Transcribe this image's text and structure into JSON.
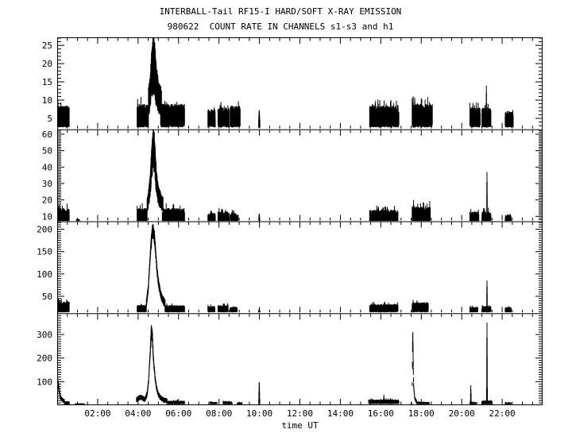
{
  "chart_data": {
    "type": "line",
    "title": "INTERBALL-Tail RF15-I HARD/SOFT X-RAY EMISSION",
    "subtitle": "980622  COUNT RATE IN CHANNELS s1-s3 and h1",
    "colors": {
      "foreground": "#000000",
      "background": "#ffffff"
    },
    "xaxis": {
      "title": "time UT",
      "range_hours": [
        0,
        24
      ],
      "major_tick_hours": 2,
      "minor_tick_hours": 0.5,
      "ticks": [
        {
          "h": 2,
          "label": "02:00"
        },
        {
          "h": 4,
          "label": "04:00"
        },
        {
          "h": 6,
          "label": "06:00"
        },
        {
          "h": 8,
          "label": "08:00"
        },
        {
          "h": 10,
          "label": "10:00"
        },
        {
          "h": 12,
          "label": "12:00"
        },
        {
          "h": 14,
          "label": "14:00"
        },
        {
          "h": 16,
          "label": "16:00"
        },
        {
          "h": 18,
          "label": "18:00"
        },
        {
          "h": 20,
          "label": "20:00"
        },
        {
          "h": 22,
          "label": "22:00"
        }
      ]
    },
    "panels": [
      {
        "channel": "s1",
        "ylim": [
          2,
          27.2
        ],
        "yticks": [
          5,
          10,
          15,
          20,
          25
        ],
        "yminor": 1,
        "segments": [
          {
            "type": "band",
            "t0": 0.03,
            "t1": 0.6,
            "lo": 2.5,
            "hi": 8.5
          },
          {
            "type": "flare",
            "t0": 3.95,
            "t1": 6.3,
            "lo": 2.5,
            "hi": 9,
            "th": 0.45,
            "minth": 3,
            "env": [
              [
                3.95,
                7.5
              ],
              [
                4.2,
                8
              ],
              [
                4.4,
                9.5
              ],
              [
                4.5,
                11
              ],
              [
                4.6,
                15
              ],
              [
                4.68,
                21
              ],
              [
                4.74,
                25.5
              ],
              [
                4.8,
                24
              ],
              [
                4.88,
                18
              ],
              [
                4.95,
                15
              ],
              [
                5.05,
                12.5
              ],
              [
                5.2,
                11
              ],
              [
                5.4,
                9.8
              ],
              [
                5.7,
                9.2
              ],
              [
                6.28,
                8.5
              ]
            ]
          },
          {
            "type": "band",
            "t0": 7.45,
            "t1": 7.82,
            "lo": 2.5,
            "hi": 7.5
          },
          {
            "type": "band",
            "t0": 7.95,
            "t1": 8.5,
            "lo": 2.5,
            "hi": 8,
            "spikes": [
              [
                8.1,
                9.5
              ]
            ]
          },
          {
            "type": "band",
            "t0": 8.55,
            "t1": 9.05,
            "lo": 2.5,
            "hi": 8.5
          },
          {
            "type": "spike",
            "t": 9.99,
            "v": 7.5,
            "w": 0.07,
            "lo": 2.5
          },
          {
            "type": "band",
            "t0": 15.45,
            "t1": 16.9,
            "lo": 2.5,
            "hi": 8.5,
            "spikes": [
              [
                15.95,
                10
              ],
              [
                16.5,
                10
              ]
            ]
          },
          {
            "type": "band",
            "t0": 17.55,
            "t1": 18.55,
            "lo": 2.5,
            "hi": 9,
            "spikes": [
              [
                17.6,
                11
              ],
              [
                18.0,
                10.5
              ]
            ]
          },
          {
            "type": "band",
            "t0": 20.4,
            "t1": 20.92,
            "lo": 2.5,
            "hi": 8
          },
          {
            "type": "band",
            "t0": 21.0,
            "t1": 21.45,
            "lo": 2.5,
            "hi": 8,
            "spikes": [
              [
                21.22,
                14
              ]
            ]
          },
          {
            "type": "band",
            "t0": 22.15,
            "t1": 22.55,
            "lo": 2.5,
            "hi": 7
          }
        ]
      },
      {
        "channel": "s2",
        "ylim": [
          7,
          63
        ],
        "yticks": [
          10,
          20,
          30,
          40,
          50,
          60
        ],
        "yminor": 1,
        "segments": [
          {
            "type": "band",
            "t0": 0.03,
            "t1": 0.6,
            "lo": 4.5,
            "hi": 15,
            "spikes": [
              [
                0.1,
                17
              ]
            ]
          },
          {
            "type": "band",
            "t0": 0.95,
            "t1": 1.1,
            "lo": 4.5,
            "hi": 8.5
          },
          {
            "type": "flare",
            "t0": 3.95,
            "t1": 6.3,
            "lo": 4.5,
            "hi": 15,
            "th": 0.3,
            "minth": 5,
            "env": [
              [
                3.95,
                13
              ],
              [
                4.2,
                14
              ],
              [
                4.4,
                17
              ],
              [
                4.5,
                22
              ],
              [
                4.6,
                33
              ],
              [
                4.68,
                50
              ],
              [
                4.74,
                60
              ],
              [
                4.8,
                56
              ],
              [
                4.88,
                40
              ],
              [
                4.95,
                30
              ],
              [
                5.05,
                24
              ],
              [
                5.2,
                20
              ],
              [
                5.4,
                17
              ],
              [
                5.7,
                15
              ],
              [
                6.28,
                14
              ]
            ]
          },
          {
            "type": "band",
            "t0": 7.45,
            "t1": 7.82,
            "lo": 4.5,
            "hi": 12
          },
          {
            "type": "band",
            "t0": 7.95,
            "t1": 8.5,
            "lo": 4.5,
            "hi": 13
          },
          {
            "type": "band",
            "t0": 8.55,
            "t1": 8.95,
            "lo": 4.5,
            "hi": 12
          },
          {
            "type": "spike",
            "t": 9.99,
            "v": 12,
            "w": 0.07,
            "lo": 4.5
          },
          {
            "type": "band",
            "t0": 15.45,
            "t1": 16.85,
            "lo": 5,
            "hi": 14,
            "spikes": [
              [
                16.2,
                16
              ]
            ]
          },
          {
            "type": "band",
            "t0": 17.55,
            "t1": 18.45,
            "lo": 5,
            "hi": 16,
            "spikes": [
              [
                17.62,
                20
              ]
            ]
          },
          {
            "type": "band",
            "t0": 20.4,
            "t1": 20.85,
            "lo": 4.5,
            "hi": 13
          },
          {
            "type": "band",
            "t0": 21.0,
            "t1": 21.45,
            "lo": 4.5,
            "hi": 13,
            "spikes": [
              [
                21.25,
                37
              ]
            ]
          },
          {
            "type": "band",
            "t0": 22.15,
            "t1": 22.45,
            "lo": 4.5,
            "hi": 11
          }
        ]
      },
      {
        "channel": "s3",
        "ylim": [
          12,
          218
        ],
        "yticks": [
          50,
          100,
          150,
          200
        ],
        "yminor": 5,
        "segments": [
          {
            "type": "band",
            "t0": 0.03,
            "t1": 0.6,
            "lo": 14,
            "hi": 38,
            "spikes": [
              [
                0.06,
                45
              ]
            ]
          },
          {
            "type": "flare",
            "t0": 3.95,
            "t1": 6.3,
            "lo": 14,
            "hi": 30,
            "th": 0.1,
            "minth": 12,
            "env": [
              [
                3.95,
                26
              ],
              [
                4.15,
                30
              ],
              [
                4.3,
                30
              ],
              [
                4.4,
                36
              ],
              [
                4.5,
                70
              ],
              [
                4.58,
                130
              ],
              [
                4.65,
                180
              ],
              [
                4.72,
                207
              ],
              [
                4.78,
                200
              ],
              [
                4.85,
                165
              ],
              [
                4.92,
                120
              ],
              [
                5.0,
                88
              ],
              [
                5.1,
                62
              ],
              [
                5.2,
                48
              ],
              [
                5.35,
                38
              ],
              [
                5.6,
                32
              ],
              [
                6.28,
                28
              ]
            ]
          },
          {
            "type": "band",
            "t0": 7.45,
            "t1": 7.8,
            "lo": 14,
            "hi": 28
          },
          {
            "type": "band",
            "t0": 7.95,
            "t1": 8.45,
            "lo": 14,
            "hi": 30
          },
          {
            "type": "band",
            "t0": 8.55,
            "t1": 8.9,
            "lo": 14,
            "hi": 26
          },
          {
            "type": "spike",
            "t": 9.99,
            "v": 22,
            "w": 0.07,
            "lo": 14
          },
          {
            "type": "band",
            "t0": 15.45,
            "t1": 16.85,
            "lo": 14,
            "hi": 32,
            "spikes": [
              [
                16.2,
                38
              ]
            ]
          },
          {
            "type": "band",
            "t0": 17.55,
            "t1": 18.35,
            "lo": 14,
            "hi": 36,
            "spikes": [
              [
                17.6,
                42
              ]
            ]
          },
          {
            "type": "band",
            "t0": 20.4,
            "t1": 20.8,
            "lo": 14,
            "hi": 26
          },
          {
            "type": "band",
            "t0": 21.0,
            "t1": 21.45,
            "lo": 14,
            "hi": 28,
            "spikes": [
              [
                21.25,
                85
              ]
            ]
          },
          {
            "type": "band",
            "t0": 22.15,
            "t1": 22.45,
            "lo": 14,
            "hi": 26
          }
        ]
      },
      {
        "channel": "h1",
        "ylim": [
          0,
          390
        ],
        "yticks": [
          100,
          200,
          300
        ],
        "yminor": 10,
        "segments": [
          {
            "type": "flare",
            "t0": 0.02,
            "t1": 0.6,
            "lo": 3,
            "hi": 17,
            "th": 0.2,
            "minth": 12,
            "env": [
              [
                0.02,
                80
              ],
              [
                0.05,
                100
              ],
              [
                0.1,
                65
              ],
              [
                0.15,
                42
              ],
              [
                0.22,
                30
              ],
              [
                0.3,
                24
              ],
              [
                0.4,
                20
              ],
              [
                0.6,
                18
              ]
            ]
          },
          {
            "type": "band",
            "t0": 0.9,
            "t1": 1.35,
            "lo": 3,
            "hi": 8
          },
          {
            "type": "flare",
            "t0": 3.92,
            "t1": 6.3,
            "lo": 4,
            "hi": 19,
            "th": 0.12,
            "minth": 14,
            "env": [
              [
                3.92,
                28
              ],
              [
                4.05,
                38
              ],
              [
                4.15,
                40
              ],
              [
                4.25,
                34
              ],
              [
                4.35,
                30
              ],
              [
                4.45,
                55
              ],
              [
                4.52,
                110
              ],
              [
                4.6,
                230
              ],
              [
                4.65,
                325
              ],
              [
                4.7,
                310
              ],
              [
                4.76,
                200
              ],
              [
                4.84,
                120
              ],
              [
                4.92,
                75
              ],
              [
                5.0,
                52
              ],
              [
                5.1,
                38
              ],
              [
                5.25,
                28
              ],
              [
                5.5,
                23
              ],
              [
                6.28,
                20
              ]
            ]
          },
          {
            "type": "band",
            "t0": 7.55,
            "t1": 7.9,
            "lo": 4,
            "hi": 14
          },
          {
            "type": "band",
            "t0": 8.2,
            "t1": 8.65,
            "lo": 4,
            "hi": 16
          },
          {
            "type": "band",
            "t0": 8.9,
            "t1": 9.15,
            "lo": 4,
            "hi": 12
          },
          {
            "type": "spike",
            "t": 9.99,
            "v": 105,
            "w": 0.05,
            "lo": 4
          },
          {
            "type": "band",
            "t0": 15.4,
            "t1": 16.9,
            "lo": 5,
            "hi": 24,
            "spikes": [
              [
                16.15,
                44
              ]
            ]
          },
          {
            "type": "flare",
            "t0": 17.55,
            "t1": 18.4,
            "lo": 4,
            "hi": 14,
            "th": 0.15,
            "minth": 10,
            "env": [
              [
                17.55,
                14
              ],
              [
                17.57,
                295
              ],
              [
                17.585,
                310
              ],
              [
                17.62,
                90
              ],
              [
                17.68,
                32
              ],
              [
                17.78,
                17
              ],
              [
                18.4,
                14
              ]
            ]
          },
          {
            "type": "band",
            "t0": 20.4,
            "t1": 20.75,
            "lo": 4,
            "hi": 13,
            "spikes": [
              [
                20.45,
                85
              ]
            ]
          },
          {
            "type": "band",
            "t0": 21.0,
            "t1": 21.5,
            "lo": 4,
            "hi": 20,
            "spikes": [
              [
                21.25,
                350
              ]
            ]
          },
          {
            "type": "band",
            "t0": 22.15,
            "t1": 22.45,
            "lo": 4,
            "hi": 12
          }
        ]
      }
    ]
  }
}
